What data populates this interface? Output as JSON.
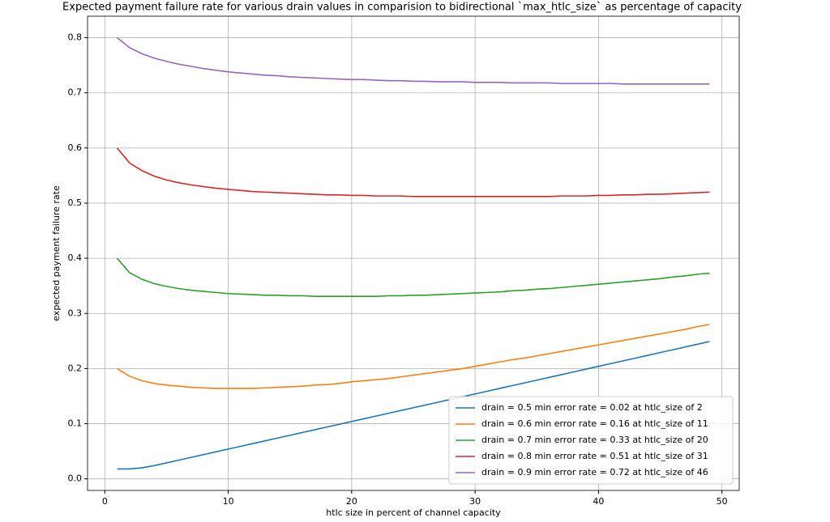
{
  "chart_data": {
    "type": "line",
    "title": "Expected payment failure rate for various drain values in comparision to bidirectional `max_htlc_size` as percentage of capacity",
    "x_label": "htlc size in percent of channel capacity",
    "y_label": "expected payment failure rate",
    "x": [
      1,
      2,
      3,
      4,
      5,
      6,
      7,
      8,
      9,
      10,
      11,
      12,
      13,
      14,
      15,
      16,
      17,
      18,
      19,
      20,
      21,
      22,
      23,
      24,
      25,
      26,
      27,
      28,
      29,
      30,
      31,
      32,
      33,
      34,
      35,
      36,
      37,
      38,
      39,
      40,
      41,
      42,
      43,
      44,
      45,
      46,
      47,
      48,
      49
    ],
    "xlim": [
      -1.4,
      51.4
    ],
    "xticks": [
      0,
      10,
      20,
      30,
      40,
      50
    ],
    "ylim": [
      -0.021,
      0.839
    ],
    "yticks": [
      {
        "value": 0,
        "label": "0.0"
      },
      0.1,
      0.2,
      0.3,
      0.4,
      0.5,
      0.6,
      0.7,
      0.8
    ],
    "grid": true,
    "legend": "lower right",
    "series": [
      {
        "name": "drain = 0.5 min error rate = 0.02 at htlc_size of 2",
        "color": "#1f77b4",
        "values": [
          0.018,
          0.018,
          0.02,
          0.024,
          0.029,
          0.034,
          0.039,
          0.044,
          0.049,
          0.054,
          0.059,
          0.064,
          0.069,
          0.074,
          0.079,
          0.084,
          0.089,
          0.094,
          0.099,
          0.104,
          0.109,
          0.114,
          0.119,
          0.124,
          0.129,
          0.134,
          0.139,
          0.144,
          0.149,
          0.154,
          0.159,
          0.164,
          0.169,
          0.174,
          0.179,
          0.184,
          0.189,
          0.194,
          0.199,
          0.204,
          0.209,
          0.214,
          0.219,
          0.224,
          0.229,
          0.234,
          0.239,
          0.244,
          0.249
        ]
      },
      {
        "name": "drain = 0.6 min error rate = 0.16 at htlc_size of 11",
        "color": "#ff7f0e",
        "values": [
          0.2,
          0.186,
          0.178,
          0.173,
          0.17,
          0.168,
          0.166,
          0.165,
          0.164,
          0.164,
          0.164,
          0.164,
          0.165,
          0.166,
          0.167,
          0.168,
          0.17,
          0.171,
          0.173,
          0.176,
          0.178,
          0.18,
          0.182,
          0.185,
          0.188,
          0.191,
          0.194,
          0.197,
          0.2,
          0.204,
          0.208,
          0.212,
          0.216,
          0.219,
          0.223,
          0.227,
          0.231,
          0.235,
          0.239,
          0.243,
          0.247,
          0.251,
          0.255,
          0.259,
          0.263,
          0.267,
          0.271,
          0.276,
          0.28
        ]
      },
      {
        "name": "drain = 0.7 min error rate = 0.33 at htlc_size of 20",
        "color": "#2ca02c",
        "values": [
          0.4,
          0.374,
          0.362,
          0.354,
          0.349,
          0.345,
          0.342,
          0.34,
          0.338,
          0.336,
          0.335,
          0.334,
          0.333,
          0.333,
          0.332,
          0.332,
          0.331,
          0.331,
          0.331,
          0.331,
          0.331,
          0.331,
          0.332,
          0.332,
          0.333,
          0.333,
          0.334,
          0.335,
          0.336,
          0.337,
          0.338,
          0.339,
          0.341,
          0.342,
          0.344,
          0.345,
          0.347,
          0.349,
          0.351,
          0.353,
          0.355,
          0.357,
          0.359,
          0.361,
          0.363,
          0.366,
          0.368,
          0.371,
          0.373
        ]
      },
      {
        "name": "drain = 0.8 min error rate = 0.51 at htlc_size of 31",
        "color": "#d62728",
        "values": [
          0.6,
          0.573,
          0.559,
          0.549,
          0.542,
          0.537,
          0.533,
          0.53,
          0.527,
          0.525,
          0.523,
          0.521,
          0.52,
          0.519,
          0.518,
          0.517,
          0.516,
          0.515,
          0.515,
          0.514,
          0.514,
          0.513,
          0.513,
          0.513,
          0.512,
          0.512,
          0.512,
          0.512,
          0.512,
          0.512,
          0.512,
          0.512,
          0.512,
          0.512,
          0.512,
          0.512,
          0.513,
          0.513,
          0.513,
          0.514,
          0.514,
          0.515,
          0.515,
          0.516,
          0.516,
          0.517,
          0.518,
          0.519,
          0.52
        ]
      },
      {
        "name": "drain = 0.9 min error rate = 0.72 at htlc_size of 46",
        "color": "#9467bd",
        "values": [
          0.8,
          0.782,
          0.771,
          0.763,
          0.757,
          0.752,
          0.748,
          0.744,
          0.741,
          0.738,
          0.736,
          0.734,
          0.732,
          0.731,
          0.729,
          0.728,
          0.727,
          0.726,
          0.725,
          0.724,
          0.724,
          0.723,
          0.722,
          0.722,
          0.721,
          0.721,
          0.72,
          0.72,
          0.72,
          0.719,
          0.719,
          0.719,
          0.718,
          0.718,
          0.718,
          0.718,
          0.717,
          0.717,
          0.717,
          0.717,
          0.717,
          0.716,
          0.716,
          0.716,
          0.716,
          0.716,
          0.716,
          0.716,
          0.716
        ]
      }
    ]
  }
}
